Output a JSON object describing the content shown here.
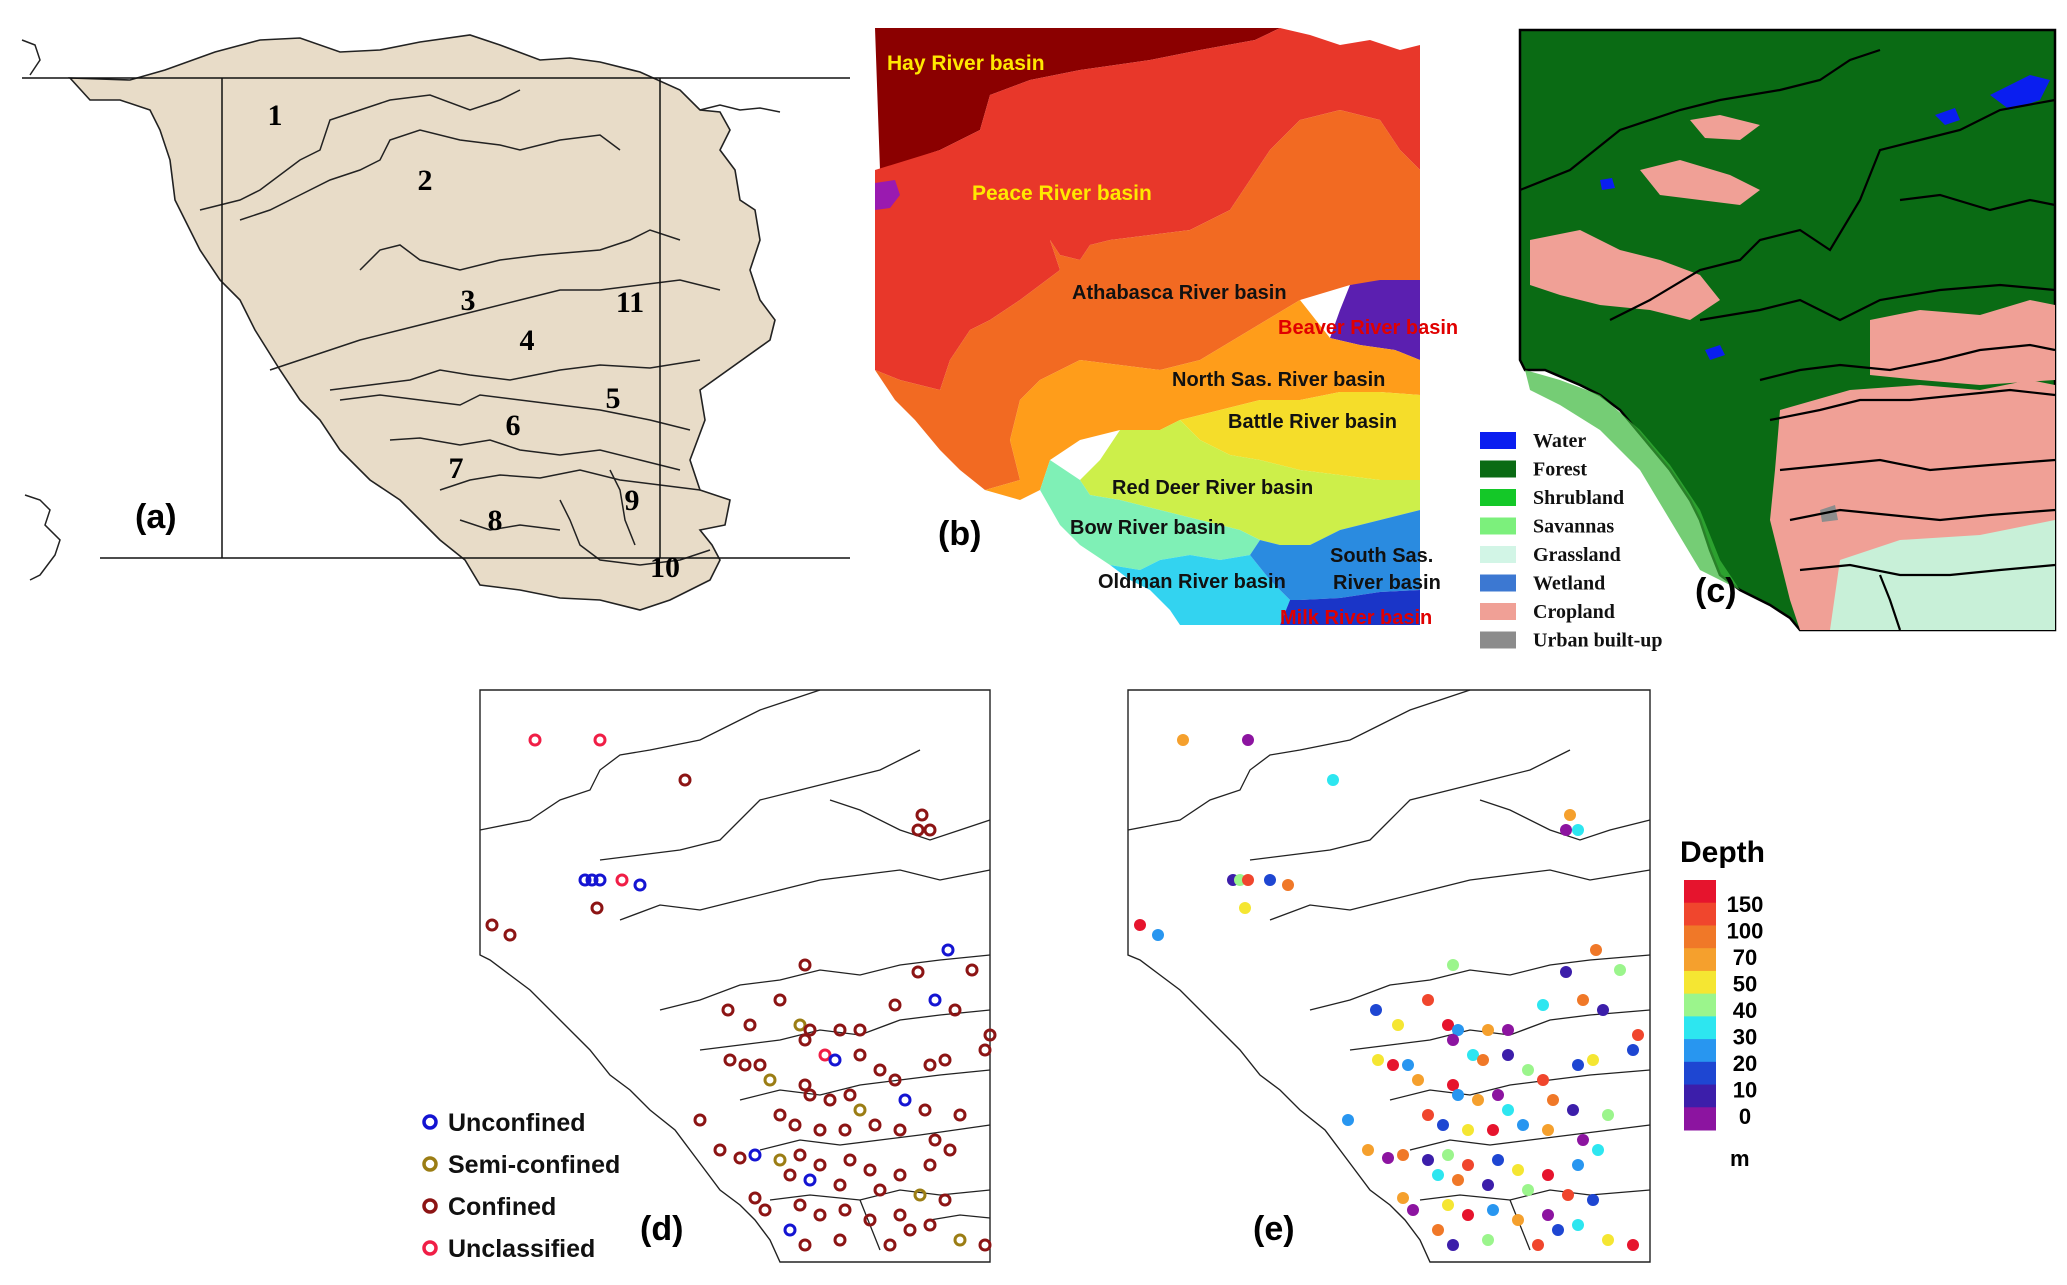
{
  "panels": {
    "a": {
      "label": "(a)",
      "regions": [
        "1",
        "2",
        "3",
        "4",
        "5",
        "6",
        "7",
        "8",
        "9",
        "10",
        "11"
      ]
    },
    "b": {
      "label": "(b)",
      "basins": [
        {
          "name": "Hay River basin",
          "color": "#8b0000",
          "text_color": "yellow"
        },
        {
          "name": "Peace River basin",
          "color": "#e8372a",
          "text_color": "yellow"
        },
        {
          "name": "Athabasca River basin",
          "color": "#f26a22",
          "text_color": "black"
        },
        {
          "name": "Beaver River basin",
          "color": "#5b1fb0",
          "text_color": "red"
        },
        {
          "name": "North Sas. River basin",
          "color": "#ff9d1a",
          "text_color": "black"
        },
        {
          "name": "Battle River basin",
          "color": "#f5dd2a",
          "text_color": "black"
        },
        {
          "name": "Red Deer River basin",
          "color": "#cdef4a",
          "text_color": "black"
        },
        {
          "name": "Bow River basin",
          "color": "#7ff0b6",
          "text_color": "black"
        },
        {
          "name": "Oldman River basin",
          "color": "#33d3f0",
          "text_color": "black"
        },
        {
          "name": "South Sas.",
          "color": "#2a8be0",
          "text_color": "black"
        },
        {
          "name": "River basin",
          "color": "#2a8be0",
          "text_color": "black"
        },
        {
          "name": "Milk River basin",
          "color": "#1a35c8",
          "text_color": "red"
        }
      ]
    },
    "c": {
      "label": "(c)",
      "legend": [
        {
          "name": "Water",
          "color": "#0a1ef0"
        },
        {
          "name": "Forest",
          "color": "#0a6b14"
        },
        {
          "name": "Shrubland",
          "color": "#14c828"
        },
        {
          "name": "Savannas",
          "color": "#7cf07c"
        },
        {
          "name": "Grassland",
          "color": "#d2f5e6"
        },
        {
          "name": "Wetland",
          "color": "#3c78d2"
        },
        {
          "name": "Cropland",
          "color": "#f0a096"
        },
        {
          "name": "Urban built-up",
          "color": "#8c8c8c"
        }
      ]
    },
    "d": {
      "label": "(d)",
      "legend": [
        {
          "name": "Unconfined",
          "color": "#1414d2"
        },
        {
          "name": "Semi-confined",
          "color": "#9b7d14"
        },
        {
          "name": "Confined",
          "color": "#8c1414"
        },
        {
          "name": "Unclassified",
          "color": "#f01e46"
        }
      ]
    },
    "e": {
      "label": "(e)",
      "colorbar_title": "Depth",
      "colorbar_unit": "m",
      "colorbar_ticks": [
        "150",
        "100",
        "70",
        "50",
        "40",
        "30",
        "20",
        "10",
        "0"
      ],
      "colorbar_colors": [
        "#e6142d",
        "#f0462d",
        "#f07828",
        "#f5a02d",
        "#f5e632",
        "#9bf58c",
        "#2de6f0",
        "#2896f0",
        "#1e46d2",
        "#3c1eaa",
        "#8c14a0"
      ]
    }
  }
}
